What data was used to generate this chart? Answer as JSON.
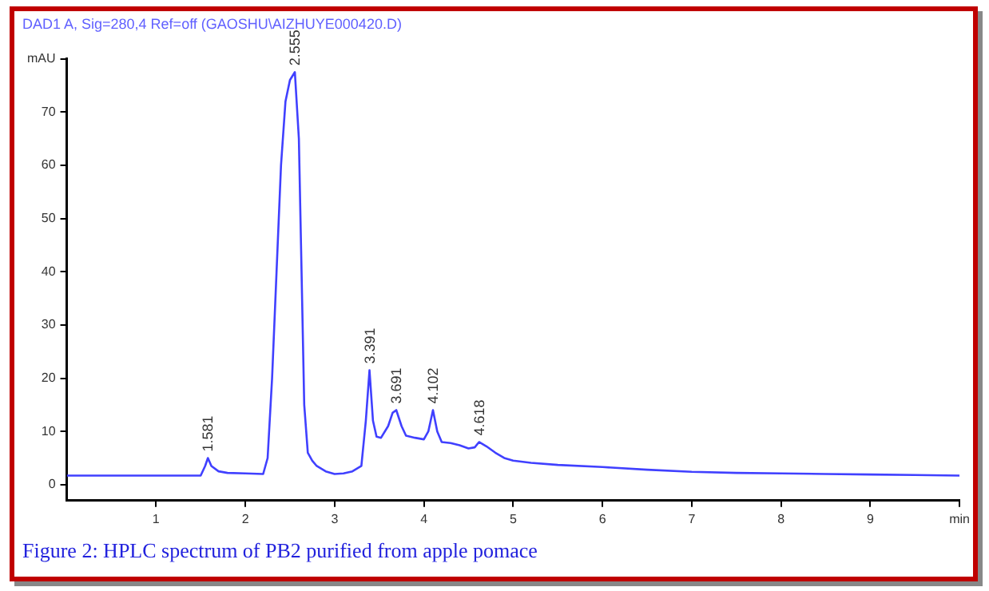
{
  "chart_data": {
    "type": "line",
    "title": "Figure 2: HPLC spectrum of PB2 purified from apple pomace",
    "subtitle": "DAD1 A, Sig=280,4 Ref=off (GAOSHU\\AIZHUYE000420.D)",
    "x": [
      0,
      0.5,
      1,
      1.5,
      1.55,
      1.581,
      1.62,
      1.7,
      1.8,
      2.0,
      2.2,
      2.25,
      2.3,
      2.35,
      2.4,
      2.45,
      2.5,
      2.555,
      2.6,
      2.63,
      2.66,
      2.7,
      2.75,
      2.8,
      2.9,
      3.0,
      3.1,
      3.2,
      3.3,
      3.35,
      3.391,
      3.43,
      3.47,
      3.52,
      3.6,
      3.65,
      3.691,
      3.75,
      3.8,
      3.9,
      4.0,
      4.05,
      4.102,
      4.15,
      4.2,
      4.3,
      4.4,
      4.5,
      4.57,
      4.618,
      4.7,
      4.8,
      4.9,
      5.0,
      5.2,
      5.5,
      6.0,
      6.5,
      7.0,
      7.5,
      8.0,
      8.5,
      9.0,
      9.5,
      10
    ],
    "series": [
      {
        "color": "#4040ff",
        "values": [
          1.7,
          1.7,
          1.7,
          1.7,
          3.5,
          5,
          3.5,
          2.5,
          2.2,
          2.1,
          2.0,
          5,
          20,
          40,
          60,
          72,
          76,
          77.5,
          65,
          40,
          15,
          6,
          4.5,
          3.5,
          2.5,
          2.0,
          2.1,
          2.5,
          3.5,
          12,
          21.5,
          12,
          9,
          8.8,
          11,
          13.5,
          14,
          11,
          9.2,
          8.8,
          8.5,
          10,
          14,
          10,
          8,
          7.8,
          7.4,
          6.8,
          7,
          8,
          7.2,
          6,
          5,
          4.5,
          4.1,
          3.7,
          3.3,
          2.8,
          2.4,
          2.2,
          2.1,
          2.0,
          1.9,
          1.8,
          1.7
        ]
      }
    ],
    "xlim": [
      0,
      10
    ],
    "xticks": [
      1,
      2,
      3,
      4,
      5,
      6,
      7,
      8,
      9,
      {
        "value": 10,
        "label": "min"
      }
    ],
    "ylim": [
      -3,
      80
    ],
    "yticks": [
      0,
      10,
      20,
      30,
      40,
      50,
      60,
      70,
      {
        "value": 80,
        "label": "mAU"
      }
    ],
    "grid": false,
    "legend": false,
    "marker": "none",
    "line_style": "solid",
    "annotations": [
      {
        "text": "1.581",
        "x": 1.581,
        "y": 5
      },
      {
        "text": "2.555",
        "x": 2.555,
        "y": 77.5
      },
      {
        "text": "3.391",
        "x": 3.391,
        "y": 21.5
      },
      {
        "text": "3.691",
        "x": 3.691,
        "y": 14
      },
      {
        "text": "4.102",
        "x": 4.102,
        "y": 14
      },
      {
        "text": "4.618",
        "x": 4.618,
        "y": 8
      }
    ]
  }
}
